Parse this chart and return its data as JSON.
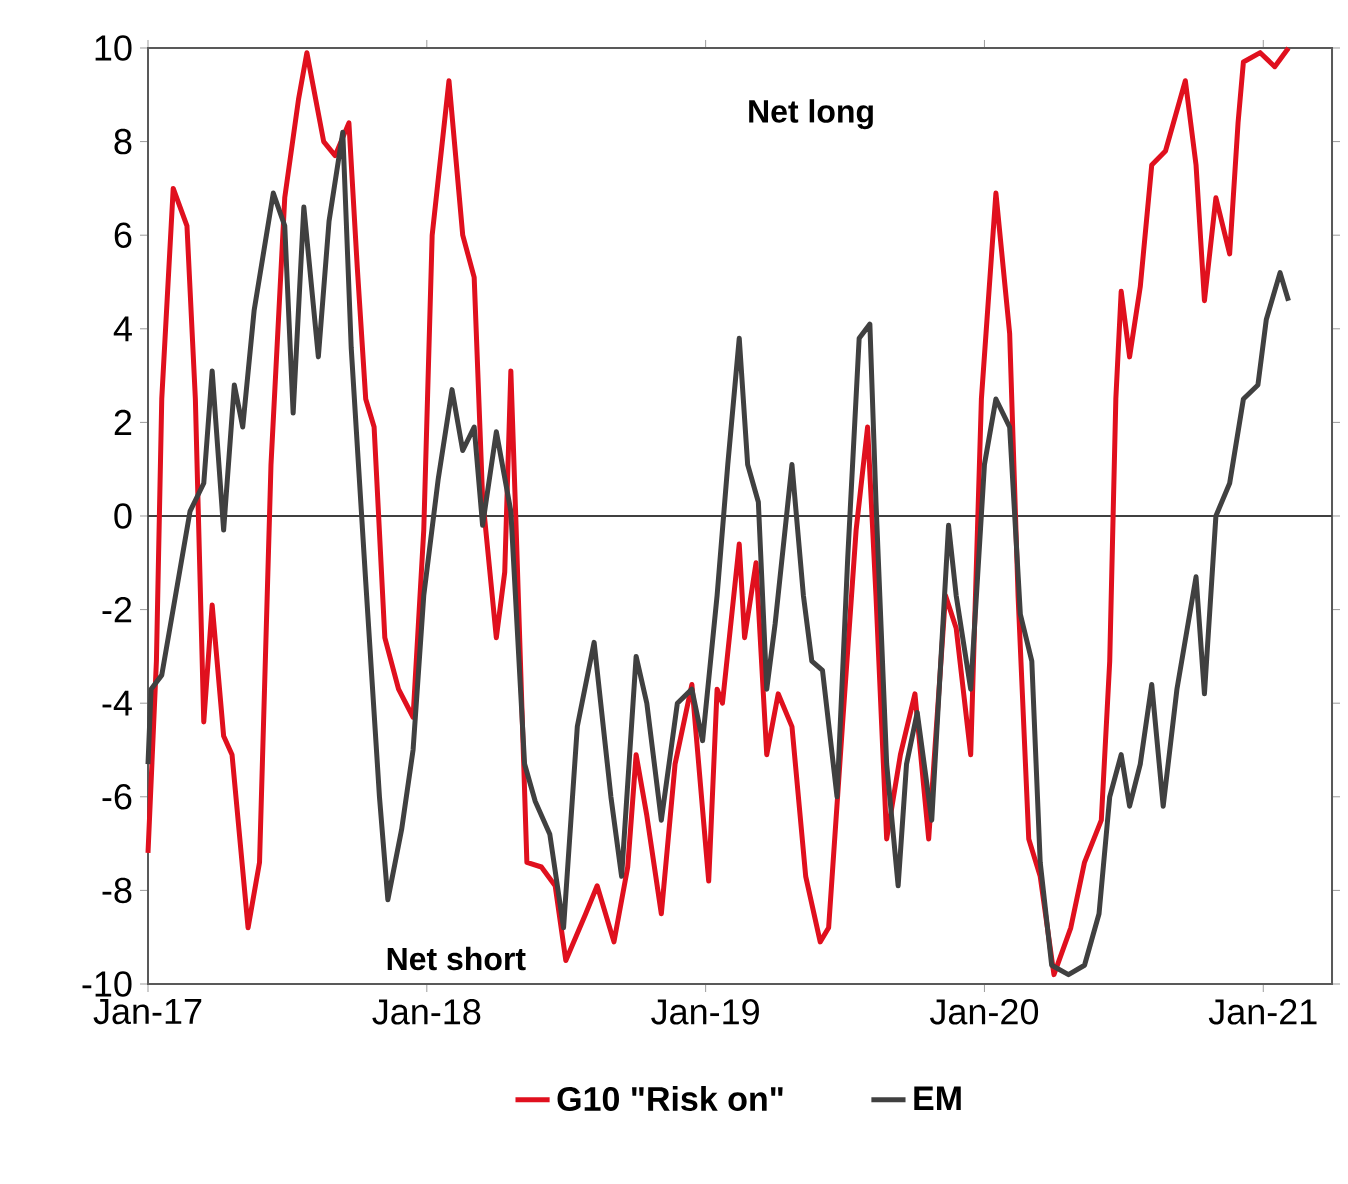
{
  "chart_data": {
    "type": "line",
    "annotations": [
      "Net long",
      "Net short"
    ],
    "xlim": [
      "2017-01-01",
      "2021-04-01"
    ],
    "xticks": [
      {
        "value": "2017-01-01",
        "label": "Jan-17"
      },
      {
        "value": "2018-01-01",
        "label": "Jan-18"
      },
      {
        "value": "2019-01-01",
        "label": "Jan-19"
      },
      {
        "value": "2020-01-01",
        "label": "Jan-20"
      },
      {
        "value": "2021-01-01",
        "label": "Jan-21"
      }
    ],
    "ylim": [
      -10,
      10
    ],
    "yticks": [
      -10,
      -8,
      -6,
      -4,
      -2,
      0,
      2,
      4,
      6,
      8,
      10
    ],
    "grid": false,
    "legend": "bottom",
    "marker": "none",
    "line_style": "solid",
    "ref_lines": [
      {
        "axis": "y",
        "value": 0,
        "color": "#404040"
      }
    ],
    "series": [
      {
        "name": "G10 \"Risk on\"",
        "color": "#e0101e",
        "x": [
          "2017-01-01",
          "2017-01-12",
          "2017-01-19",
          "2017-02-03",
          "2017-02-21",
          "2017-03-04",
          "2017-03-15",
          "2017-03-26",
          "2017-04-10",
          "2017-04-21",
          "2017-05-12",
          "2017-05-27",
          "2017-06-11",
          "2017-06-29",
          "2017-07-17",
          "2017-07-28",
          "2017-08-19",
          "2017-09-03",
          "2017-09-21",
          "2017-10-02",
          "2017-10-13",
          "2017-10-24",
          "2017-11-07",
          "2017-11-25",
          "2017-12-14",
          "2017-12-28",
          "2018-01-08",
          "2018-01-30",
          "2018-02-17",
          "2018-03-04",
          "2018-03-15",
          "2018-04-02",
          "2018-04-13",
          "2018-04-21",
          "2018-04-28",
          "2018-05-12",
          "2018-05-31",
          "2018-06-18",
          "2018-07-02",
          "2018-07-28",
          "2018-08-12",
          "2018-09-03",
          "2018-09-21",
          "2018-10-02",
          "2018-10-16",
          "2018-11-04",
          "2018-11-22",
          "2018-12-14",
          "2019-01-05",
          "2019-01-16",
          "2019-01-23",
          "2019-02-14",
          "2019-02-21",
          "2019-03-08",
          "2019-03-22",
          "2019-04-06",
          "2019-04-24",
          "2019-05-12",
          "2019-05-31",
          "2019-06-11",
          "2019-06-29",
          "2019-07-17",
          "2019-08-01",
          "2019-08-12",
          "2019-08-26",
          "2019-09-13",
          "2019-10-02",
          "2019-10-20",
          "2019-11-11",
          "2019-11-25",
          "2019-12-14",
          "2019-12-28",
          "2020-01-16",
          "2020-02-03",
          "2020-02-14",
          "2020-02-28",
          "2020-03-15",
          "2020-04-02",
          "2020-04-24",
          "2020-05-12",
          "2020-06-03",
          "2020-06-14",
          "2020-06-22",
          "2020-06-29",
          "2020-07-10",
          "2020-07-24",
          "2020-08-08",
          "2020-08-26",
          "2020-09-21",
          "2020-10-05",
          "2020-10-16",
          "2020-10-31",
          "2020-11-18",
          "2020-11-29",
          "2020-12-06",
          "2020-12-28",
          "2021-01-16",
          "2021-02-03"
        ],
        "values": [
          -7.2,
          -3.1,
          2.5,
          7.0,
          6.2,
          2.5,
          -4.4,
          -1.9,
          -4.7,
          -5.1,
          -8.8,
          -7.4,
          1.1,
          6.8,
          8.9,
          9.9,
          8.0,
          7.7,
          8.4,
          5.3,
          2.5,
          1.9,
          -2.6,
          -3.7,
          -4.3,
          -0.3,
          6.0,
          9.3,
          6.0,
          5.1,
          0.4,
          -2.6,
          -1.2,
          3.1,
          -0.3,
          -7.4,
          -7.5,
          -7.9,
          -9.5,
          -8.5,
          -7.9,
          -9.1,
          -7.5,
          -5.1,
          -6.4,
          -8.5,
          -5.3,
          -3.6,
          -7.8,
          -3.7,
          -4.0,
          -0.6,
          -2.6,
          -1.0,
          -5.1,
          -3.8,
          -4.5,
          -7.7,
          -9.1,
          -8.8,
          -4.5,
          -0.3,
          1.9,
          -1.7,
          -6.9,
          -5.1,
          -3.8,
          -6.9,
          -1.7,
          -2.4,
          -5.1,
          2.5,
          6.9,
          3.9,
          -1.7,
          -6.9,
          -7.7,
          -9.8,
          -8.8,
          -7.4,
          -6.5,
          -3.1,
          2.5,
          4.8,
          3.4,
          4.9,
          7.5,
          7.8,
          9.3,
          7.5,
          4.6,
          6.8,
          5.6,
          8.4,
          9.7,
          9.9,
          9.6,
          10.0
        ]
      },
      {
        "name": "EM",
        "color": "#404040",
        "x": [
          "2017-01-01",
          "2017-01-05",
          "2017-01-19",
          "2017-02-06",
          "2017-02-25",
          "2017-03-15",
          "2017-03-26",
          "2017-04-10",
          "2017-04-24",
          "2017-05-05",
          "2017-05-20",
          "2017-05-31",
          "2017-06-14",
          "2017-06-29",
          "2017-07-10",
          "2017-07-24",
          "2017-08-12",
          "2017-08-26",
          "2017-09-13",
          "2017-09-24",
          "2017-10-13",
          "2017-10-31",
          "2017-11-11",
          "2017-11-29",
          "2017-12-14",
          "2017-12-28",
          "2018-01-16",
          "2018-02-03",
          "2018-02-17",
          "2018-03-04",
          "2018-03-15",
          "2018-04-02",
          "2018-04-21",
          "2018-05-09",
          "2018-05-23",
          "2018-06-11",
          "2018-06-29",
          "2018-07-17",
          "2018-08-08",
          "2018-08-30",
          "2018-09-13",
          "2018-10-02",
          "2018-10-16",
          "2018-11-04",
          "2018-11-25",
          "2018-12-14",
          "2018-12-28",
          "2019-01-16",
          "2019-01-30",
          "2019-02-14",
          "2019-02-25",
          "2019-03-11",
          "2019-03-22",
          "2019-04-02",
          "2019-04-24",
          "2019-05-09",
          "2019-05-20",
          "2019-06-03",
          "2019-06-22",
          "2019-07-06",
          "2019-07-21",
          "2019-08-04",
          "2019-08-12",
          "2019-08-26",
          "2019-09-10",
          "2019-09-21",
          "2019-10-05",
          "2019-10-24",
          "2019-11-15",
          "2019-11-25",
          "2019-12-14",
          "2020-01-01",
          "2020-01-16",
          "2020-02-03",
          "2020-02-17",
          "2020-03-04",
          "2020-03-15",
          "2020-03-30",
          "2020-04-21",
          "2020-05-12",
          "2020-05-31",
          "2020-06-14",
          "2020-06-29",
          "2020-07-10",
          "2020-07-24",
          "2020-08-08",
          "2020-08-23",
          "2020-09-10",
          "2020-10-05",
          "2020-10-16",
          "2020-10-31",
          "2020-11-18",
          "2020-12-06",
          "2020-12-25",
          "2021-01-05",
          "2021-01-23",
          "2021-02-03"
        ],
        "values": [
          -5.3,
          -3.7,
          -3.4,
          -1.7,
          0.1,
          0.7,
          3.1,
          -0.3,
          2.8,
          1.9,
          4.4,
          5.5,
          6.9,
          6.2,
          2.2,
          6.6,
          3.4,
          6.3,
          8.2,
          3.6,
          -1.4,
          -6.0,
          -8.2,
          -6.7,
          -5.0,
          -1.7,
          0.8,
          2.7,
          1.4,
          1.9,
          -0.2,
          1.8,
          0.1,
          -5.3,
          -6.1,
          -6.8,
          -8.8,
          -4.5,
          -2.7,
          -6.0,
          -7.7,
          -3.0,
          -4.0,
          -6.5,
          -4.0,
          -3.7,
          -4.8,
          -1.7,
          1.1,
          3.8,
          1.1,
          0.3,
          -3.7,
          -2.3,
          1.1,
          -1.7,
          -3.1,
          -3.3,
          -6.0,
          -0.9,
          3.8,
          4.1,
          0.3,
          -5.3,
          -7.9,
          -5.3,
          -4.2,
          -6.5,
          -0.2,
          -1.7,
          -3.7,
          1.1,
          2.5,
          1.9,
          -2.1,
          -3.1,
          -7.4,
          -9.6,
          -9.8,
          -9.6,
          -8.5,
          -6.0,
          -5.1,
          -6.2,
          -5.3,
          -3.6,
          -6.2,
          -3.7,
          -1.3,
          -3.8,
          0.0,
          0.7,
          2.5,
          2.8,
          4.2,
          5.2,
          4.6
        ]
      }
    ]
  }
}
